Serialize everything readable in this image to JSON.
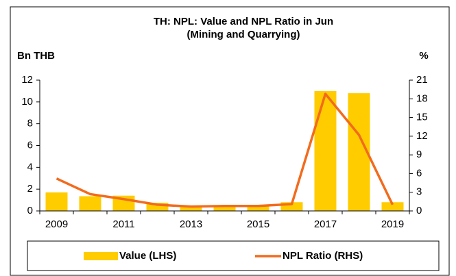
{
  "chart_data": {
    "type": "bar_line",
    "title": "TH: NPL: Value and NPL Ratio in Jun",
    "subtitle": "(Mining and Quarrying)",
    "ylabel": "Bn THB",
    "y2label": "%",
    "categories": [
      "2009",
      null,
      "2011",
      null,
      "2013",
      null,
      "2015",
      null,
      "2017",
      null,
      "2019"
    ],
    "series": [
      {
        "name": "Value (LHS)",
        "type": "bar",
        "color": "#ffcc00",
        "axis": "y",
        "values": [
          1.7,
          1.35,
          1.4,
          0.75,
          0.5,
          0.5,
          0.5,
          0.8,
          11.0,
          10.8,
          0.8
        ]
      },
      {
        "name": "NPL Ratio (RHS)",
        "type": "line",
        "color": "#f26b1d",
        "axis": "y2",
        "values": [
          5.2,
          2.7,
          1.9,
          1.0,
          0.7,
          0.8,
          0.8,
          1.1,
          18.8,
          12.2,
          1.0
        ]
      }
    ],
    "ylim": [
      0,
      12
    ],
    "yticks": [
      0,
      2,
      4,
      6,
      8,
      10,
      12
    ],
    "y2lim": [
      0,
      21
    ],
    "y2ticks": [
      0,
      3,
      6,
      9,
      12,
      15,
      18,
      21
    ],
    "legend": "bottom"
  }
}
